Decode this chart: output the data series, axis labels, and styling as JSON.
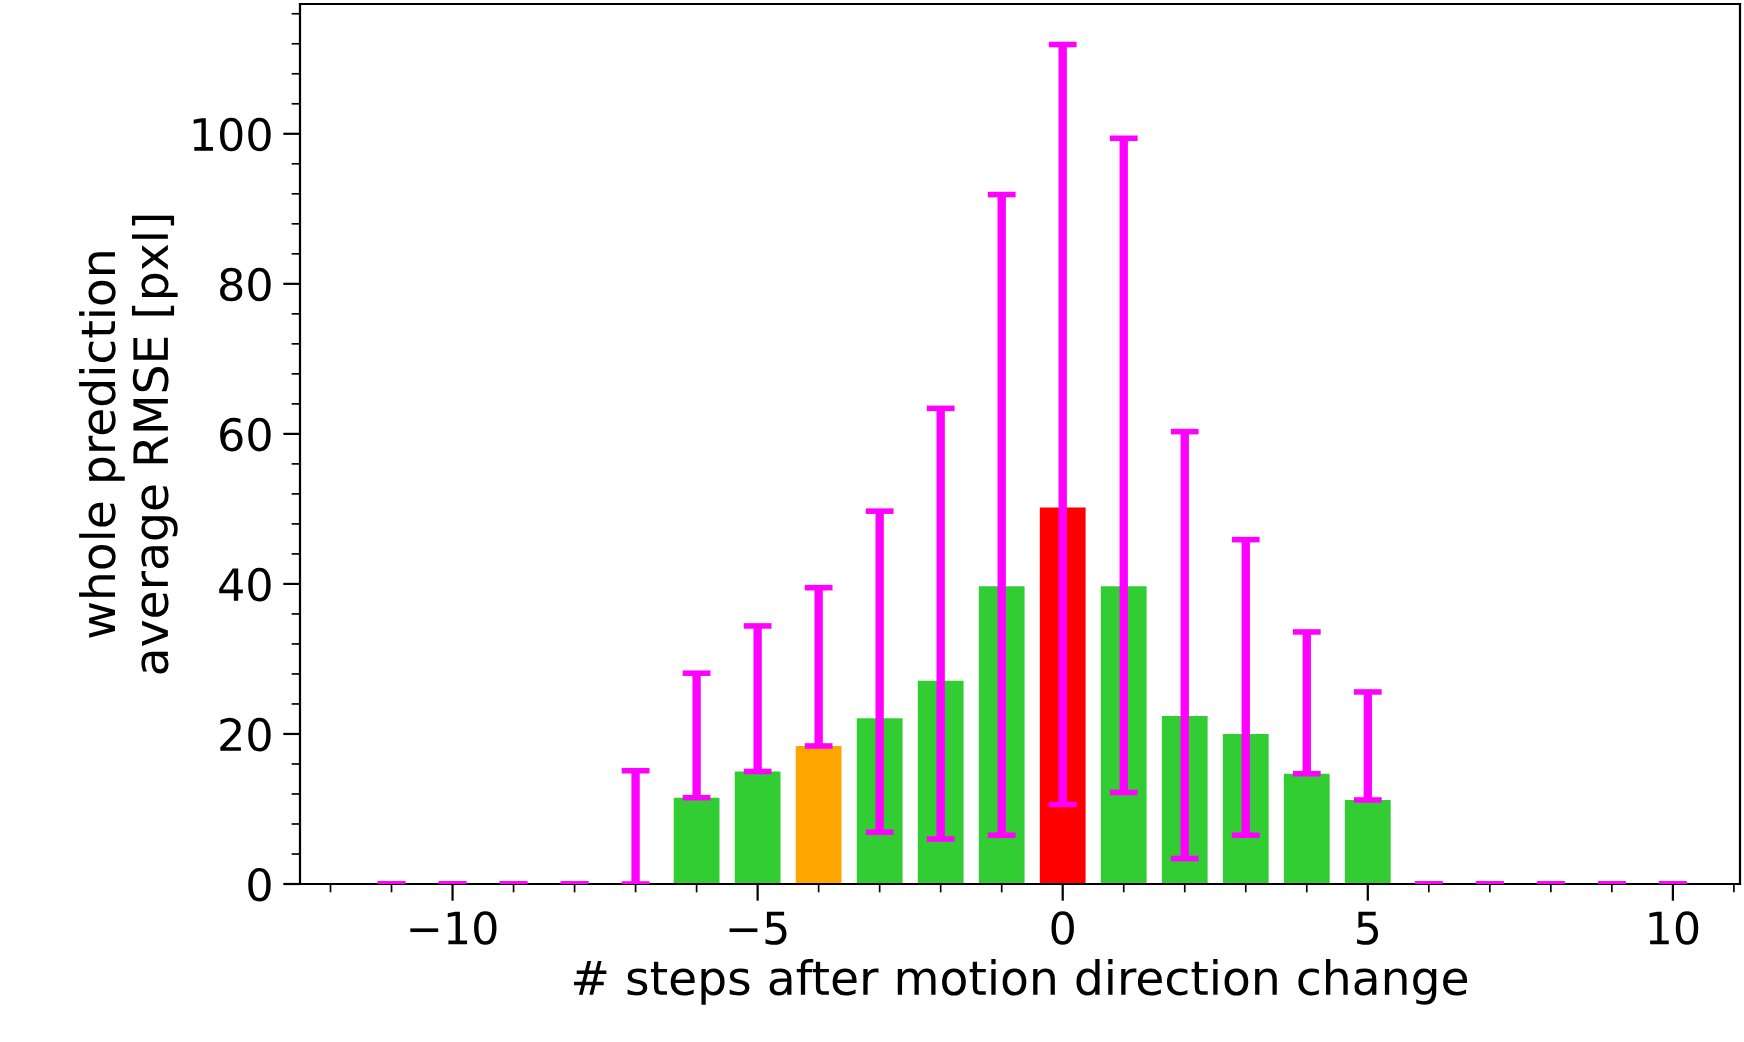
{
  "chart_data": {
    "type": "bar",
    "xlabel": "# steps after motion direction change",
    "ylabel": "whole prediction\naverage RMSE [pxl]",
    "x": [
      -11,
      -10,
      -9,
      -8,
      -7,
      -6,
      -5,
      -4,
      -3,
      -2,
      -1,
      0,
      1,
      2,
      3,
      4,
      5,
      6,
      7,
      8,
      9,
      10
    ],
    "values": [
      0,
      0,
      0,
      0,
      0,
      11.5,
      15.0,
      18.4,
      22.1,
      27.1,
      39.7,
      50.2,
      39.7,
      22.4,
      20.0,
      14.7,
      11.2,
      0,
      0,
      0,
      0,
      0
    ],
    "colors": [
      "#32cd32",
      "#32cd32",
      "#32cd32",
      "#32cd32",
      "#32cd32",
      "#32cd32",
      "#32cd32",
      "#ffa500",
      "#32cd32",
      "#32cd32",
      "#32cd32",
      "#ff0000",
      "#32cd32",
      "#32cd32",
      "#32cd32",
      "#32cd32",
      "#32cd32",
      "#32cd32",
      "#32cd32",
      "#32cd32",
      "#32cd32",
      "#32cd32"
    ],
    "errors": [
      [
        0,
        0
      ],
      [
        0,
        0
      ],
      [
        0,
        0
      ],
      [
        0,
        0
      ],
      [
        0,
        15.1
      ],
      [
        11.5,
        28.1
      ],
      [
        15.0,
        34.4
      ],
      [
        18.4,
        39.5
      ],
      [
        6.9,
        49.7
      ],
      [
        6.0,
        63.4
      ],
      [
        6.5,
        91.9
      ],
      [
        10.6,
        111.9
      ],
      [
        12.2,
        99.4
      ],
      [
        3.4,
        60.3
      ],
      [
        6.5,
        45.9
      ],
      [
        14.7,
        33.6
      ],
      [
        11.2,
        25.6
      ],
      [
        0,
        0
      ],
      [
        0,
        0
      ],
      [
        0,
        0
      ],
      [
        0,
        0
      ],
      [
        0,
        0
      ]
    ],
    "xlim": [
      -12.5,
      11.1
    ],
    "ylim": [
      0,
      117.3
    ],
    "xticks": [
      {
        "value": -10,
        "label": "−10"
      },
      {
        "value": -5,
        "label": "−5"
      },
      0,
      5,
      10
    ],
    "yticks": [
      0,
      20,
      40,
      60,
      80,
      100
    ],
    "grid": false,
    "legend": false
  }
}
